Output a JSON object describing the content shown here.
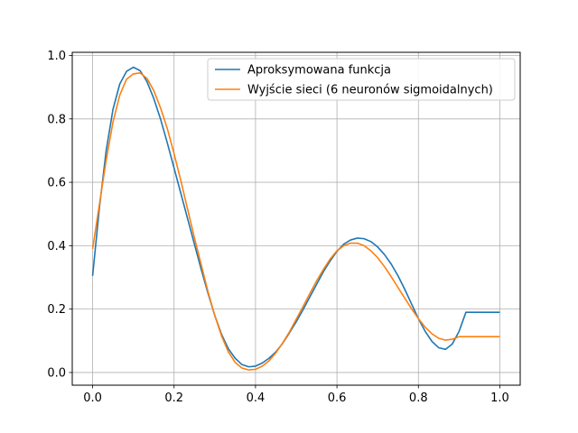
{
  "chart_data": {
    "type": "line",
    "title": "",
    "xlabel": "",
    "ylabel": "",
    "xlim": [
      -0.05,
      1.05
    ],
    "ylim": [
      -0.04,
      1.01
    ],
    "xticks": [
      0.0,
      0.2,
      0.4,
      0.6,
      0.8,
      1.0
    ],
    "xtick_labels": [
      "0.0",
      "0.2",
      "0.4",
      "0.6",
      "0.8",
      "1.0"
    ],
    "yticks": [
      0.0,
      0.2,
      0.4,
      0.6,
      0.8,
      1.0
    ],
    "ytick_labels": [
      "0.0",
      "0.2",
      "0.4",
      "0.6",
      "0.8",
      "1.0"
    ],
    "grid": true,
    "legend_position": "upper right",
    "series": [
      {
        "name": "Aproksymowana funkcja",
        "color": "#1f77b4",
        "x": [
          0.0,
          0.0167,
          0.0333,
          0.05,
          0.0667,
          0.0833,
          0.1,
          0.1167,
          0.1333,
          0.15,
          0.1667,
          0.1833,
          0.2,
          0.2167,
          0.2333,
          0.25,
          0.2667,
          0.2833,
          0.3,
          0.3167,
          0.3333,
          0.35,
          0.3667,
          0.3833,
          0.4,
          0.4167,
          0.4333,
          0.45,
          0.4667,
          0.4833,
          0.5,
          0.5167,
          0.5333,
          0.55,
          0.5667,
          0.5833,
          0.6,
          0.6167,
          0.6333,
          0.65,
          0.6667,
          0.6833,
          0.7,
          0.7167,
          0.7333,
          0.75,
          0.7667,
          0.7833,
          0.8,
          0.8167,
          0.8333,
          0.85,
          0.8667,
          0.8833,
          0.9,
          0.9167,
          0.9333,
          0.95,
          0.9667,
          0.9833,
          1.0
        ],
        "y": [
          0.305,
          0.52,
          0.7,
          0.83,
          0.91,
          0.95,
          0.963,
          0.952,
          0.918,
          0.865,
          0.8,
          0.725,
          0.645,
          0.565,
          0.485,
          0.405,
          0.325,
          0.25,
          0.18,
          0.12,
          0.075,
          0.045,
          0.025,
          0.018,
          0.02,
          0.03,
          0.045,
          0.065,
          0.092,
          0.125,
          0.16,
          0.198,
          0.238,
          0.278,
          0.318,
          0.352,
          0.382,
          0.405,
          0.418,
          0.424,
          0.422,
          0.413,
          0.396,
          0.372,
          0.342,
          0.305,
          0.262,
          0.216,
          0.17,
          0.13,
          0.098,
          0.078,
          0.073,
          0.09,
          0.13,
          0.19,
          0.19,
          0.19,
          0.19,
          0.19,
          0.19
        ]
      },
      {
        "name": "Wyjście sieci (6 neuronów sigmoidalnych)",
        "color": "#ff7f0e",
        "x": [
          0.0,
          0.0167,
          0.0333,
          0.05,
          0.0667,
          0.0833,
          0.1,
          0.1167,
          0.1333,
          0.15,
          0.1667,
          0.1833,
          0.2,
          0.2167,
          0.2333,
          0.25,
          0.2667,
          0.2833,
          0.3,
          0.3167,
          0.3333,
          0.35,
          0.3667,
          0.3833,
          0.4,
          0.4167,
          0.4333,
          0.45,
          0.4667,
          0.4833,
          0.5,
          0.5167,
          0.5333,
          0.55,
          0.5667,
          0.5833,
          0.6,
          0.6167,
          0.6333,
          0.65,
          0.6667,
          0.6833,
          0.7,
          0.7167,
          0.7333,
          0.75,
          0.7667,
          0.7833,
          0.8,
          0.8167,
          0.8333,
          0.85,
          0.8667,
          0.8833,
          0.9,
          0.9167,
          0.9333,
          0.95,
          0.9667,
          0.9833,
          1.0
        ],
        "y": [
          0.39,
          0.53,
          0.67,
          0.79,
          0.875,
          0.925,
          0.942,
          0.945,
          0.928,
          0.89,
          0.835,
          0.77,
          0.69,
          0.605,
          0.515,
          0.425,
          0.34,
          0.255,
          0.18,
          0.115,
          0.065,
          0.032,
          0.014,
          0.008,
          0.01,
          0.02,
          0.037,
          0.062,
          0.093,
          0.128,
          0.168,
          0.208,
          0.249,
          0.289,
          0.325,
          0.358,
          0.384,
          0.4,
          0.408,
          0.408,
          0.4,
          0.384,
          0.362,
          0.334,
          0.302,
          0.268,
          0.234,
          0.201,
          0.17,
          0.143,
          0.122,
          0.108,
          0.102,
          0.105,
          0.113,
          0.113,
          0.113,
          0.113,
          0.113,
          0.113,
          0.113
        ]
      }
    ]
  }
}
